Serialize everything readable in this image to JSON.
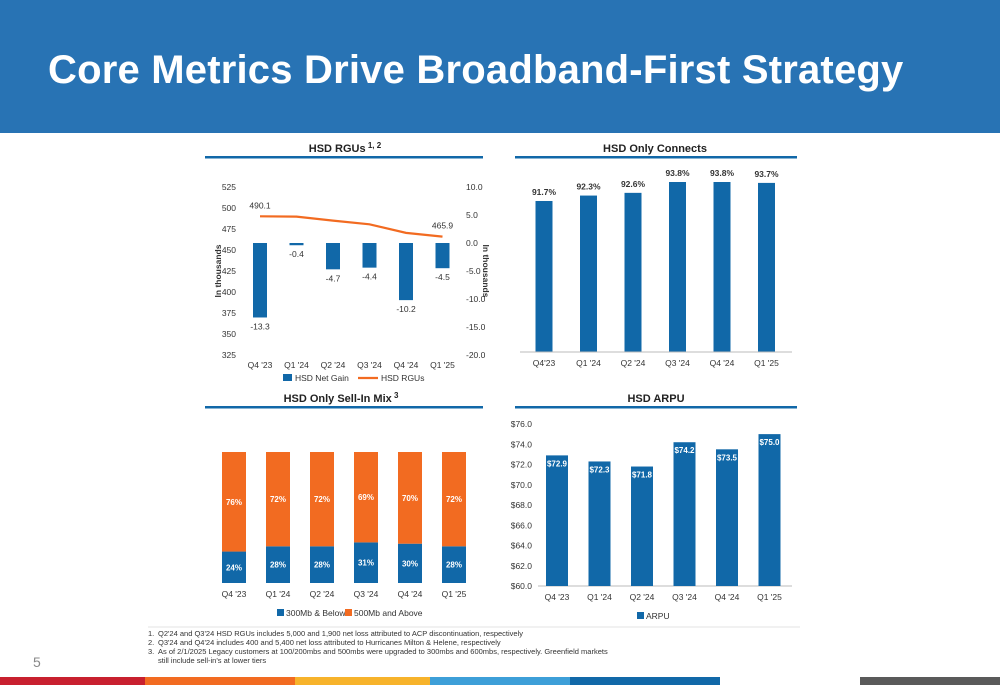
{
  "slide": {
    "title": "Core Metrics Drive Broadband-First Strategy",
    "page_number": "5"
  },
  "colors": {
    "header_bg": "#2873b4",
    "bar_blue": "#1168a8",
    "line_orange": "#f26b21",
    "accent_orange": "#f26b21",
    "divider_blue": "#1168a8"
  },
  "footnotes": [
    {
      "num": "1.",
      "text": "Q2'24 and Q3'24 HSD RGUs includes 5,000 and 1,900 net loss attributed to ACP discontinuation, respectively"
    },
    {
      "num": "2.",
      "text": "Q3'24 and Q4'24 includes 400 and 5,400 net loss attributed to Hurricanes Milton & Helene, respectively"
    },
    {
      "num": "3.",
      "text": "As of 2/1/2025 Legacy customers at 100/200mbs and 500mbs were upgraded to 300mbs and 600mbs, respectively. Greenfield markets still include sell-in's at lower tiers"
    }
  ],
  "chart_data": [
    {
      "id": "hsd_rgus",
      "type": "bar",
      "title": "HSD RGUs",
      "title_superscript": "1, 2",
      "categories": [
        "Q4 '23",
        "Q1 '24",
        "Q2 '24",
        "Q3 '24",
        "Q4 '24",
        "Q1 '25"
      ],
      "left_ylabel": "In thousands",
      "right_ylabel": "In thousands",
      "left_ylim": [
        325,
        525
      ],
      "left_ticks": [
        "325",
        "350",
        "375",
        "400",
        "425",
        "450",
        "475",
        "500",
        "525"
      ],
      "right_ylim": [
        -20,
        10
      ],
      "right_ticks": [
        "-20.0",
        "-15.0",
        "-10.0",
        "-5.0",
        "0.0",
        "5.0",
        "10.0"
      ],
      "series": [
        {
          "name": "HSD Net Gain",
          "type": "bar",
          "axis": "right",
          "color": "#1168a8",
          "values": [
            -13.3,
            -0.4,
            -4.7,
            -4.4,
            -10.2,
            -4.5
          ],
          "labels": [
            "-13.3",
            "-0.4",
            "-4.7",
            "-4.4",
            "-10.2",
            "-4.5"
          ]
        },
        {
          "name": "HSD RGUs",
          "type": "line",
          "axis": "left",
          "color": "#f26b21",
          "values": [
            490.1,
            489.7,
            485.0,
            480.6,
            470.4,
            465.9
          ],
          "labels": [
            "490.1",
            "",
            "",
            "",
            "",
            "465.9"
          ]
        }
      ],
      "legend": [
        "HSD Net Gain",
        "HSD RGUs"
      ],
      "legend_position": "bottom"
    },
    {
      "id": "hsd_only_connects",
      "type": "bar",
      "title": "HSD Only Connects",
      "categories": [
        "Q4'23",
        "Q1 '24",
        "Q2 '24",
        "Q3 '24",
        "Q4 '24",
        "Q1 '25"
      ],
      "series": [
        {
          "name": "",
          "values": [
            91.7,
            92.3,
            92.6,
            93.8,
            93.8,
            93.7
          ],
          "labels": [
            "91.7%",
            "92.3%",
            "92.6%",
            "93.8%",
            "93.8%",
            "93.7%"
          ]
        }
      ]
    },
    {
      "id": "hsd_only_sell_in_mix",
      "type": "bar",
      "stacked": true,
      "title": "HSD Only Sell-In Mix",
      "title_superscript": "3",
      "categories": [
        "Q4 '23",
        "Q1 '24",
        "Q2 '24",
        "Q3 '24",
        "Q4 '24",
        "Q1 '25"
      ],
      "series": [
        {
          "name": "300Mb & Below",
          "color": "#1168a8",
          "values": [
            24,
            28,
            28,
            31,
            30,
            28
          ],
          "labels": [
            "24%",
            "28%",
            "28%",
            "31%",
            "30%",
            "28%"
          ]
        },
        {
          "name": "500Mb and Above",
          "color": "#f26b21",
          "values": [
            76,
            72,
            72,
            69,
            70,
            72
          ],
          "labels": [
            "76%",
            "72%",
            "72%",
            "69%",
            "70%",
            "72%"
          ]
        }
      ],
      "legend_position": "bottom"
    },
    {
      "id": "hsd_arpu",
      "type": "bar",
      "title": "HSD ARPU",
      "categories": [
        "Q4 '23",
        "Q1 '24",
        "Q2 '24",
        "Q3 '24",
        "Q4 '24",
        "Q1 '25"
      ],
      "ylim": [
        60,
        76
      ],
      "y_ticks": [
        "$60.0",
        "$62.0",
        "$64.0",
        "$66.0",
        "$68.0",
        "$70.0",
        "$72.0",
        "$74.0",
        "$76.0"
      ],
      "series": [
        {
          "name": "ARPU",
          "color": "#1168a8",
          "values": [
            72.9,
            72.3,
            71.8,
            74.2,
            73.5,
            75.0
          ],
          "labels": [
            "$72.9",
            "$72.3",
            "$71.8",
            "$74.2",
            "$73.5",
            "$75.0"
          ]
        }
      ],
      "legend_position": "bottom-left"
    }
  ]
}
